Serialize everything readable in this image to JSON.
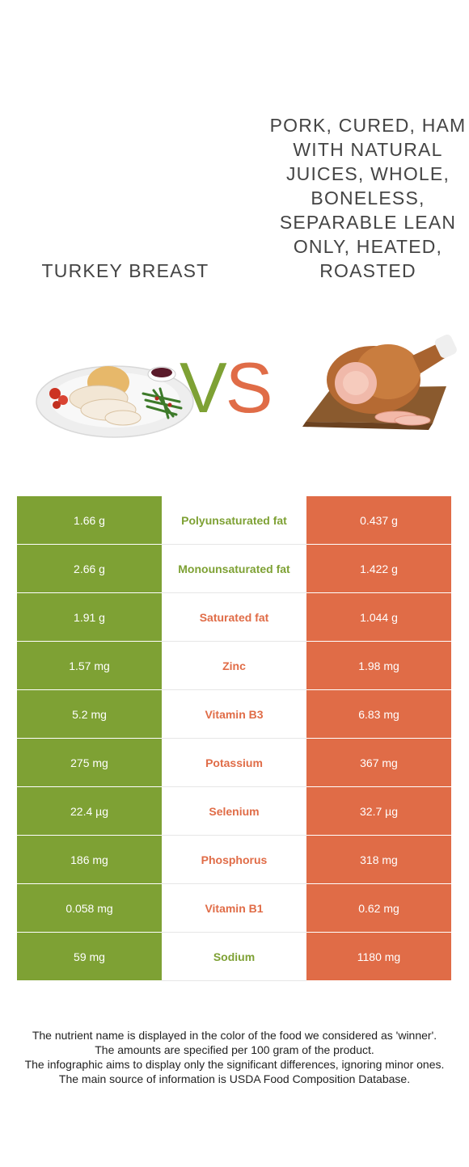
{
  "foods": {
    "left": {
      "name": "Turkey breast",
      "color": "#7ea134",
      "image_icon": "turkey-breast-plate-image"
    },
    "right": {
      "name": "Pork, cured, ham with natural juices, whole, boneless, separable lean only, heated, roasted",
      "color": "#e06c47",
      "image_icon": "roasted-ham-image"
    }
  },
  "vs": {
    "v": "V",
    "s": "S"
  },
  "rows": [
    {
      "left": "1.66 g",
      "nutrient": "Polyunsaturated fat",
      "right": "0.437 g",
      "winner": "left"
    },
    {
      "left": "2.66 g",
      "nutrient": "Monounsaturated fat",
      "right": "1.422 g",
      "winner": "left"
    },
    {
      "left": "1.91 g",
      "nutrient": "Saturated fat",
      "right": "1.044 g",
      "winner": "right"
    },
    {
      "left": "1.57 mg",
      "nutrient": "Zinc",
      "right": "1.98 mg",
      "winner": "right"
    },
    {
      "left": "5.2 mg",
      "nutrient": "Vitamin B3",
      "right": "6.83 mg",
      "winner": "right"
    },
    {
      "left": "275 mg",
      "nutrient": "Potassium",
      "right": "367 mg",
      "winner": "right"
    },
    {
      "left": "22.4 µg",
      "nutrient": "Selenium",
      "right": "32.7 µg",
      "winner": "right"
    },
    {
      "left": "186 mg",
      "nutrient": "Phosphorus",
      "right": "318 mg",
      "winner": "right"
    },
    {
      "left": "0.058 mg",
      "nutrient": "Vitamin B1",
      "right": "0.62 mg",
      "winner": "right"
    },
    {
      "left": "59 mg",
      "nutrient": "Sodium",
      "right": "1180 mg",
      "winner": "left"
    }
  ],
  "footnotes": [
    "The nutrient name is displayed in the color of the food we considered as 'winner'.",
    "The amounts are specified per 100 gram of the product.",
    "The infographic aims to display only the significant differences, ignoring minor ones.",
    "The main source of information is USDA Food Composition Database."
  ]
}
